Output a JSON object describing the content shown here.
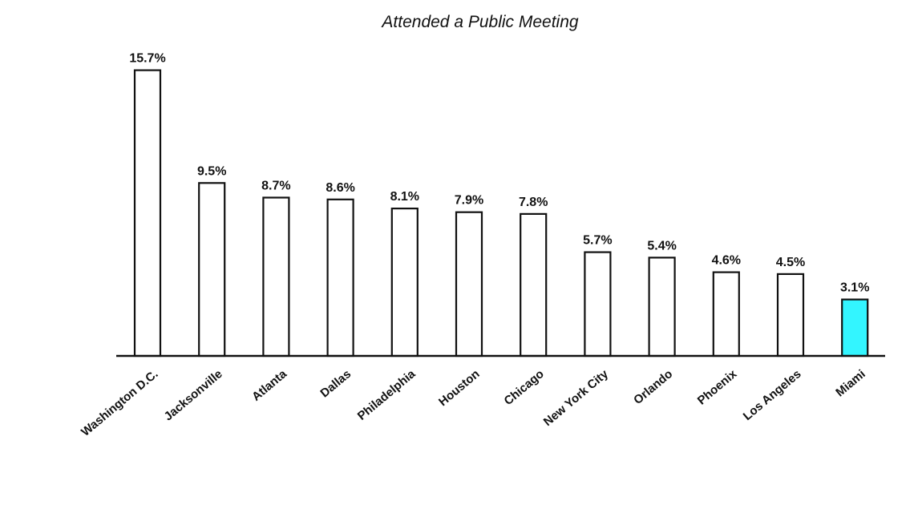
{
  "chart_data": {
    "type": "bar",
    "title": "Attended a Public Meeting",
    "xlabel": "",
    "ylabel": "",
    "ylim": [
      0,
      16
    ],
    "grid": false,
    "categories": [
      "Washington D.C.",
      "Jacksonville",
      "Atlanta",
      "Dallas",
      "Philadelphia",
      "Houston",
      "Chicago",
      "New York City",
      "Orlando",
      "Phoenix",
      "Los Angeles",
      "Miami"
    ],
    "values": [
      15.7,
      9.5,
      8.7,
      8.6,
      8.1,
      7.9,
      7.8,
      5.7,
      5.4,
      4.6,
      4.5,
      3.1
    ],
    "value_labels": [
      "15.7%",
      "9.5%",
      "8.7%",
      "8.6%",
      "8.1%",
      "7.9%",
      "7.8%",
      "5.7%",
      "5.4%",
      "4.6%",
      "4.5%",
      "3.1%"
    ],
    "bar_color": "#ffffff",
    "highlight_category": "Miami",
    "highlight_color": "#33f5ff",
    "outline_color": "#111111"
  }
}
